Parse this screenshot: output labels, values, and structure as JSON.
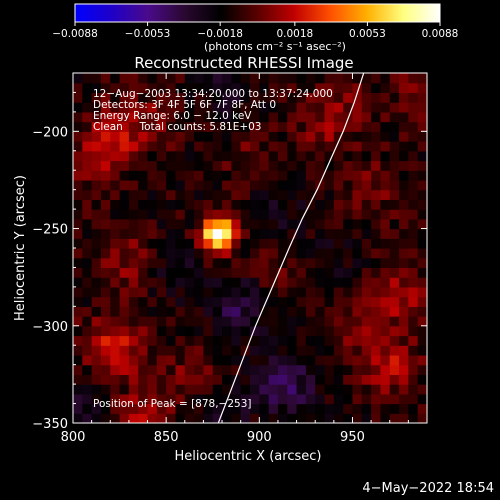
{
  "colors": {
    "background": "#000000",
    "text": "#ffffff",
    "colorbar_stops": [
      "#0000ff",
      "#1e00c8",
      "#4a0a8a",
      "#2a0830",
      "#000000",
      "#5a0000",
      "#c00000",
      "#ff5000",
      "#ffb000",
      "#ffff80",
      "#ffffff"
    ]
  },
  "chart_data": {
    "type": "heatmap",
    "title": "Reconstructed RHESSI Image",
    "xlabel": "Heliocentric X (arcsec)",
    "ylabel": "Heliocentric Y (arcsec)",
    "xlim": [
      800,
      990
    ],
    "ylim": [
      -350,
      -170
    ],
    "xticks": [
      800,
      850,
      900,
      950
    ],
    "yticks": [
      -200,
      -250,
      -300,
      -350
    ],
    "xtick_labels": [
      "800",
      "850",
      "900",
      "950"
    ],
    "ytick_labels": [
      "−200",
      "−250",
      "−300",
      "−350"
    ],
    "colorbar": {
      "range": [
        -0.0088,
        0.0088
      ],
      "ticks": [
        -0.0088,
        -0.0053,
        -0.0018,
        0.0018,
        0.0053,
        0.0088
      ],
      "tick_labels": [
        "−0.0088",
        "−0.0053",
        "−0.0018",
        "0.0018",
        "0.0053",
        "0.0088"
      ],
      "units_label": "(photons cm⁻² s⁻¹ asec⁻²)"
    },
    "annotations": [
      "12−Aug−2003 13:34:20.000 to 13:37:24.000",
      "Detectors: 3F 4F 5F 6F 7F 8F, Att 0",
      "Energy Range: 6.0 − 12.0 keV",
      "Clean     Total counts: 5.81E+03"
    ],
    "peak_label": "Position of Peak = [878,−253]",
    "peak": {
      "x": 878,
      "y": -253,
      "value": 0.0088
    },
    "limb_curve": {
      "x": [
        956,
        951,
        945,
        938,
        931,
        923,
        916,
        907,
        898,
        888,
        878
      ],
      "y": [
        -170,
        -185,
        -200,
        -215,
        -230,
        -245,
        -260,
        -280,
        -300,
        -325,
        -350
      ]
    },
    "background_blobs": [
      {
        "x": 825,
        "y": -200,
        "v": 0.0025
      },
      {
        "x": 812,
        "y": -215,
        "v": 0.002
      },
      {
        "x": 830,
        "y": -265,
        "v": 0.0018
      },
      {
        "x": 822,
        "y": -310,
        "v": 0.0035
      },
      {
        "x": 840,
        "y": -345,
        "v": 0.0025
      },
      {
        "x": 865,
        "y": -325,
        "v": 0.0015
      },
      {
        "x": 935,
        "y": -200,
        "v": 0.0015
      },
      {
        "x": 945,
        "y": -185,
        "v": 0.0012
      },
      {
        "x": 960,
        "y": -230,
        "v": 0.0015
      },
      {
        "x": 975,
        "y": -285,
        "v": 0.0022
      },
      {
        "x": 950,
        "y": -300,
        "v": 0.0015
      },
      {
        "x": 970,
        "y": -320,
        "v": 0.0025
      },
      {
        "x": 985,
        "y": -180,
        "v": 0.0015
      },
      {
        "x": 895,
        "y": -215,
        "v": 0.0012
      },
      {
        "x": 905,
        "y": -275,
        "v": 0.001
      },
      {
        "x": 850,
        "y": -190,
        "v": 0.0012
      },
      {
        "x": 880,
        "y": -180,
        "v": -0.0015
      },
      {
        "x": 910,
        "y": -240,
        "v": -0.0012
      },
      {
        "x": 890,
        "y": -290,
        "v": -0.0025
      },
      {
        "x": 915,
        "y": -330,
        "v": -0.003
      },
      {
        "x": 880,
        "y": -340,
        "v": -0.0018
      },
      {
        "x": 855,
        "y": -270,
        "v": -0.0012
      },
      {
        "x": 805,
        "y": -340,
        "v": -0.0015
      },
      {
        "x": 940,
        "y": -270,
        "v": -0.001
      }
    ]
  },
  "footer_date": "4−May−2022 18:54"
}
